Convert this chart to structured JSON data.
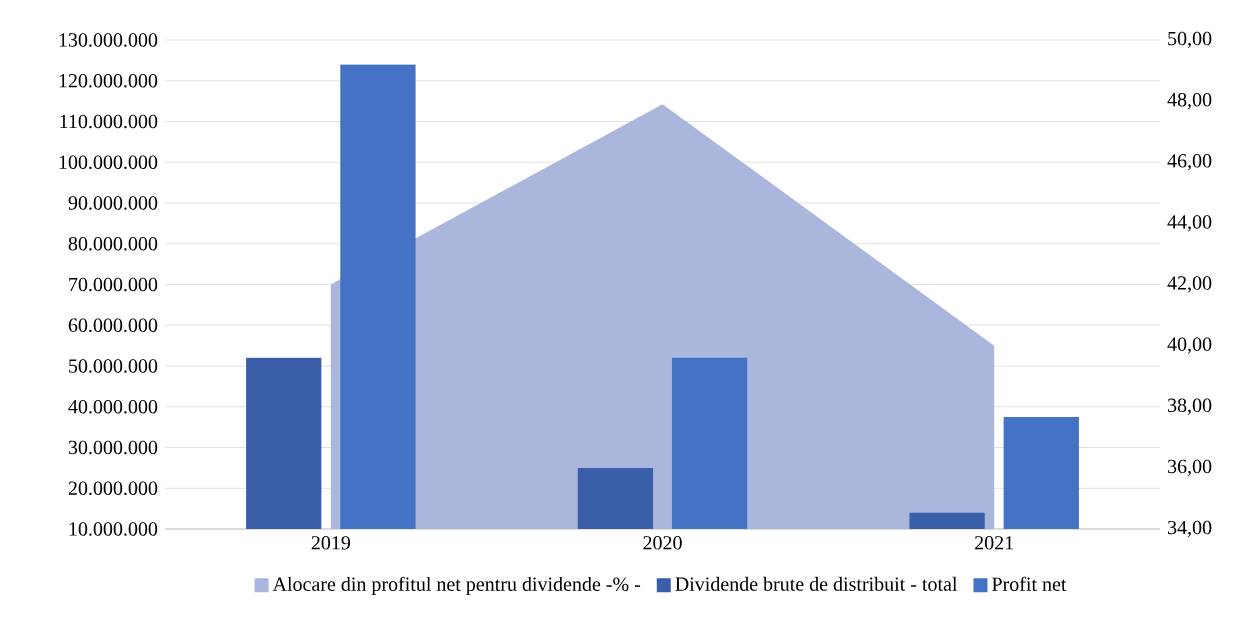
{
  "chart_data": {
    "type": "bar",
    "categories": [
      "2019",
      "2020",
      "2021"
    ],
    "series": [
      {
        "name": "Alocare din profitul net pentru dividende  -% -",
        "type": "area",
        "axis": "y2",
        "color": "#aab6dc",
        "values": [
          42.0,
          47.9,
          40.0
        ]
      },
      {
        "name": "Dividende brute de distribuit - total",
        "color": "#3a5fa8",
        "values": [
          52000000,
          25000000,
          14000000
        ]
      },
      {
        "name": "Profit net",
        "color": "#4472c4",
        "values": [
          124000000,
          52000000,
          37500000
        ]
      }
    ],
    "ylim": [
      10000000,
      130000000
    ],
    "yticks": [
      {
        "value": 10000000,
        "label": "10.000.000"
      },
      {
        "value": 20000000,
        "label": "20.000.000"
      },
      {
        "value": 30000000,
        "label": "30.000.000"
      },
      {
        "value": 40000000,
        "label": "40.000.000"
      },
      {
        "value": 50000000,
        "label": "50.000.000"
      },
      {
        "value": 60000000,
        "label": "60.000.000"
      },
      {
        "value": 70000000,
        "label": "70.000.000"
      },
      {
        "value": 80000000,
        "label": "80.000.000"
      },
      {
        "value": 90000000,
        "label": "90.000.000"
      },
      {
        "value": 100000000,
        "label": "100.000.000"
      },
      {
        "value": 110000000,
        "label": "110.000.000"
      },
      {
        "value": 120000000,
        "label": "120.000.000"
      },
      {
        "value": 130000000,
        "label": "130.000.000"
      }
    ],
    "y2lim": [
      34,
      50
    ],
    "y2ticks": [
      {
        "value": 34,
        "label": "34,00"
      },
      {
        "value": 36,
        "label": "36,00"
      },
      {
        "value": 38,
        "label": "38,00"
      },
      {
        "value": 40,
        "label": "40,00"
      },
      {
        "value": 42,
        "label": "42,00"
      },
      {
        "value": 44,
        "label": "44,00"
      },
      {
        "value": 46,
        "label": "46,00"
      },
      {
        "value": 48,
        "label": "48,00"
      },
      {
        "value": 50,
        "label": "50,00"
      }
    ],
    "grid": "y",
    "legend": "bottom"
  }
}
